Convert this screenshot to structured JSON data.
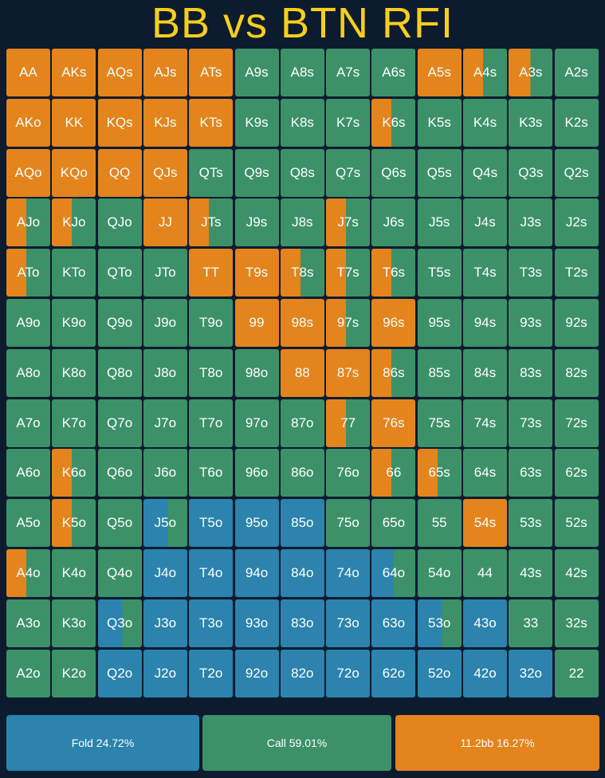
{
  "title": "BB vs BTN RFI",
  "colors": {
    "fold": "#2b83ae",
    "call": "#3d9169",
    "raise": "#e4841d",
    "background": "#0d1b2f",
    "title": "#f6cf1a"
  },
  "legend": {
    "fold": "Fold 24.72%",
    "call": "Call 59.01%",
    "raise": "11.2bb 16.27%"
  },
  "hands": [
    [
      [
        "AA",
        0,
        0,
        100
      ],
      [
        "AKs",
        0,
        0,
        100
      ],
      [
        "AQs",
        0,
        0,
        100
      ],
      [
        "AJs",
        0,
        0,
        100
      ],
      [
        "ATs",
        0,
        0,
        100
      ],
      [
        "A9s",
        0,
        100,
        0
      ],
      [
        "A8s",
        0,
        100,
        0
      ],
      [
        "A7s",
        0,
        100,
        0
      ],
      [
        "A6s",
        0,
        100,
        0
      ],
      [
        "A5s",
        0,
        0,
        100
      ],
      [
        "A4s",
        0,
        55,
        45
      ],
      [
        "A3s",
        0,
        50,
        50
      ],
      [
        "A2s",
        0,
        100,
        0
      ]
    ],
    [
      [
        "AKo",
        0,
        0,
        100
      ],
      [
        "KK",
        0,
        0,
        100
      ],
      [
        "KQs",
        0,
        0,
        100
      ],
      [
        "KJs",
        0,
        0,
        100
      ],
      [
        "KTs",
        0,
        0,
        100
      ],
      [
        "K9s",
        0,
        100,
        0
      ],
      [
        "K8s",
        0,
        100,
        0
      ],
      [
        "K7s",
        0,
        100,
        0
      ],
      [
        "K6s",
        0,
        55,
        45
      ],
      [
        "K5s",
        0,
        100,
        0
      ],
      [
        "K4s",
        0,
        100,
        0
      ],
      [
        "K3s",
        0,
        100,
        0
      ],
      [
        "K2s",
        0,
        100,
        0
      ]
    ],
    [
      [
        "AQo",
        0,
        0,
        100
      ],
      [
        "KQo",
        0,
        0,
        100
      ],
      [
        "QQ",
        0,
        0,
        100
      ],
      [
        "QJs",
        0,
        0,
        100
      ],
      [
        "QTs",
        0,
        100,
        0
      ],
      [
        "Q9s",
        0,
        100,
        0
      ],
      [
        "Q8s",
        0,
        100,
        0
      ],
      [
        "Q7s",
        0,
        100,
        0
      ],
      [
        "Q6s",
        0,
        100,
        0
      ],
      [
        "Q5s",
        0,
        100,
        0
      ],
      [
        "Q4s",
        0,
        100,
        0
      ],
      [
        "Q3s",
        0,
        100,
        0
      ],
      [
        "Q2s",
        0,
        100,
        0
      ]
    ],
    [
      [
        "AJo",
        0,
        55,
        45
      ],
      [
        "KJo",
        0,
        55,
        45
      ],
      [
        "QJo",
        0,
        100,
        0
      ],
      [
        "JJ",
        0,
        0,
        100
      ],
      [
        "JTs",
        0,
        55,
        45
      ],
      [
        "J9s",
        0,
        100,
        0
      ],
      [
        "J8s",
        0,
        100,
        0
      ],
      [
        "J7s",
        0,
        55,
        45
      ],
      [
        "J6s",
        0,
        100,
        0
      ],
      [
        "J5s",
        0,
        100,
        0
      ],
      [
        "J4s",
        0,
        100,
        0
      ],
      [
        "J3s",
        0,
        100,
        0
      ],
      [
        "J2s",
        0,
        100,
        0
      ]
    ],
    [
      [
        "ATo",
        0,
        55,
        45
      ],
      [
        "KTo",
        0,
        100,
        0
      ],
      [
        "QTo",
        0,
        100,
        0
      ],
      [
        "JTo",
        0,
        100,
        0
      ],
      [
        "TT",
        0,
        0,
        100
      ],
      [
        "T9s",
        0,
        0,
        100
      ],
      [
        "T8s",
        0,
        55,
        45
      ],
      [
        "T7s",
        0,
        55,
        45
      ],
      [
        "T6s",
        0,
        55,
        45
      ],
      [
        "T5s",
        0,
        100,
        0
      ],
      [
        "T4s",
        0,
        100,
        0
      ],
      [
        "T3s",
        0,
        100,
        0
      ],
      [
        "T2s",
        0,
        100,
        0
      ]
    ],
    [
      [
        "A9o",
        0,
        100,
        0
      ],
      [
        "K9o",
        0,
        100,
        0
      ],
      [
        "Q9o",
        0,
        100,
        0
      ],
      [
        "J9o",
        0,
        100,
        0
      ],
      [
        "T9o",
        0,
        100,
        0
      ],
      [
        "99",
        0,
        0,
        100
      ],
      [
        "98s",
        0,
        0,
        100
      ],
      [
        "97s",
        0,
        55,
        45
      ],
      [
        "96s",
        0,
        0,
        100
      ],
      [
        "95s",
        0,
        100,
        0
      ],
      [
        "94s",
        0,
        100,
        0
      ],
      [
        "93s",
        0,
        100,
        0
      ],
      [
        "92s",
        0,
        100,
        0
      ]
    ],
    [
      [
        "A8o",
        0,
        100,
        0
      ],
      [
        "K8o",
        0,
        100,
        0
      ],
      [
        "Q8o",
        0,
        100,
        0
      ],
      [
        "J8o",
        0,
        100,
        0
      ],
      [
        "T8o",
        0,
        100,
        0
      ],
      [
        "98o",
        0,
        100,
        0
      ],
      [
        "88",
        0,
        0,
        100
      ],
      [
        "87s",
        0,
        0,
        100
      ],
      [
        "86s",
        0,
        55,
        45
      ],
      [
        "85s",
        0,
        100,
        0
      ],
      [
        "84s",
        0,
        100,
        0
      ],
      [
        "83s",
        0,
        100,
        0
      ],
      [
        "82s",
        0,
        100,
        0
      ]
    ],
    [
      [
        "A7o",
        0,
        100,
        0
      ],
      [
        "K7o",
        0,
        100,
        0
      ],
      [
        "Q7o",
        0,
        100,
        0
      ],
      [
        "J7o",
        0,
        100,
        0
      ],
      [
        "T7o",
        0,
        100,
        0
      ],
      [
        "97o",
        0,
        100,
        0
      ],
      [
        "87o",
        0,
        100,
        0
      ],
      [
        "77",
        0,
        55,
        45
      ],
      [
        "76s",
        0,
        0,
        100
      ],
      [
        "75s",
        0,
        100,
        0
      ],
      [
        "74s",
        0,
        100,
        0
      ],
      [
        "73s",
        0,
        100,
        0
      ],
      [
        "72s",
        0,
        100,
        0
      ]
    ],
    [
      [
        "A6o",
        0,
        100,
        0
      ],
      [
        "K6o",
        0,
        55,
        45
      ],
      [
        "Q6o",
        0,
        100,
        0
      ],
      [
        "J6o",
        0,
        100,
        0
      ],
      [
        "T6o",
        0,
        100,
        0
      ],
      [
        "96o",
        0,
        100,
        0
      ],
      [
        "86o",
        0,
        100,
        0
      ],
      [
        "76o",
        0,
        100,
        0
      ],
      [
        "66",
        0,
        55,
        45
      ],
      [
        "65s",
        0,
        55,
        45
      ],
      [
        "64s",
        0,
        100,
        0
      ],
      [
        "63s",
        0,
        100,
        0
      ],
      [
        "62s",
        0,
        100,
        0
      ]
    ],
    [
      [
        "A5o",
        0,
        100,
        0
      ],
      [
        "K5o",
        0,
        55,
        45
      ],
      [
        "Q5o",
        0,
        100,
        0
      ],
      [
        "J5o",
        55,
        45,
        0
      ],
      [
        "T5o",
        100,
        0,
        0
      ],
      [
        "95o",
        100,
        0,
        0
      ],
      [
        "85o",
        100,
        0,
        0
      ],
      [
        "75o",
        0,
        100,
        0
      ],
      [
        "65o",
        0,
        100,
        0
      ],
      [
        "55",
        0,
        100,
        0
      ],
      [
        "54s",
        0,
        0,
        100
      ],
      [
        "53s",
        0,
        100,
        0
      ],
      [
        "52s",
        0,
        100,
        0
      ]
    ],
    [
      [
        "A4o",
        0,
        55,
        45
      ],
      [
        "K4o",
        0,
        100,
        0
      ],
      [
        "Q4o",
        0,
        100,
        0
      ],
      [
        "J4o",
        100,
        0,
        0
      ],
      [
        "T4o",
        100,
        0,
        0
      ],
      [
        "94o",
        100,
        0,
        0
      ],
      [
        "84o",
        100,
        0,
        0
      ],
      [
        "74o",
        100,
        0,
        0
      ],
      [
        "64o",
        50,
        50,
        0
      ],
      [
        "54o",
        0,
        100,
        0
      ],
      [
        "44",
        0,
        100,
        0
      ],
      [
        "43s",
        0,
        100,
        0
      ],
      [
        "42s",
        0,
        100,
        0
      ]
    ],
    [
      [
        "A3o",
        0,
        100,
        0
      ],
      [
        "K3o",
        0,
        100,
        0
      ],
      [
        "Q3o",
        55,
        45,
        0
      ],
      [
        "J3o",
        100,
        0,
        0
      ],
      [
        "T3o",
        100,
        0,
        0
      ],
      [
        "93o",
        100,
        0,
        0
      ],
      [
        "83o",
        100,
        0,
        0
      ],
      [
        "73o",
        100,
        0,
        0
      ],
      [
        "63o",
        100,
        0,
        0
      ],
      [
        "53o",
        55,
        45,
        0
      ],
      [
        "43o",
        100,
        0,
        0
      ],
      [
        "33",
        0,
        100,
        0
      ],
      [
        "32s",
        0,
        100,
        0
      ]
    ],
    [
      [
        "A2o",
        0,
        100,
        0
      ],
      [
        "K2o",
        0,
        100,
        0
      ],
      [
        "Q2o",
        100,
        0,
        0
      ],
      [
        "J2o",
        100,
        0,
        0
      ],
      [
        "T2o",
        100,
        0,
        0
      ],
      [
        "92o",
        100,
        0,
        0
      ],
      [
        "82o",
        100,
        0,
        0
      ],
      [
        "72o",
        100,
        0,
        0
      ],
      [
        "62o",
        100,
        0,
        0
      ],
      [
        "52o",
        100,
        0,
        0
      ],
      [
        "42o",
        100,
        0,
        0
      ],
      [
        "32o",
        100,
        0,
        0
      ],
      [
        "22",
        0,
        100,
        0
      ]
    ]
  ]
}
